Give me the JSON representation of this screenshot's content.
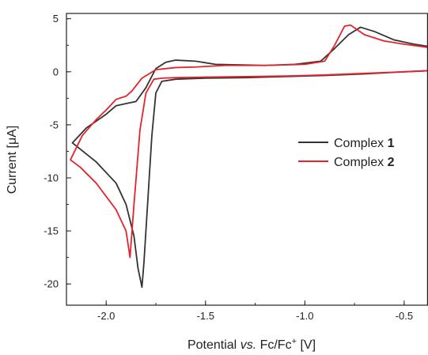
{
  "chart_data": {
    "type": "line",
    "title": "",
    "xlabel_parts": {
      "a": "Potential ",
      "b": "vs.",
      "c": " Fc/Fc",
      "d": "+",
      "e": " [V]"
    },
    "ylabel": "Current [μA]",
    "xlim": [
      -2.2,
      -0.38
    ],
    "ylim": [
      -22,
      5.5
    ],
    "x_ticks": [
      -2.0,
      -1.5,
      -1.0,
      -0.5
    ],
    "x_tick_labels": [
      "-2.0",
      "-1.5",
      "-1.0",
      "-0.5"
    ],
    "y_ticks": [
      5,
      0,
      -5,
      -10,
      -15,
      -20
    ],
    "y_tick_labels": [
      "5",
      "0",
      "-5",
      "-10",
      "-15",
      "-20"
    ],
    "legend": {
      "position": "center-right",
      "items": [
        {
          "prefix": "Complex ",
          "bold": "1",
          "color": "#333333"
        },
        {
          "prefix": "Complex ",
          "bold": "2",
          "color": "#e3242b"
        }
      ]
    },
    "series": [
      {
        "color": "#333333",
        "points": [
          [
            -0.38,
            0.1
          ],
          [
            -0.5,
            0.0
          ],
          [
            -0.7,
            -0.2
          ],
          [
            -0.9,
            -0.35
          ],
          [
            -1.1,
            -0.45
          ],
          [
            -1.3,
            -0.55
          ],
          [
            -1.5,
            -0.6
          ],
          [
            -1.65,
            -0.7
          ],
          [
            -1.72,
            -0.9
          ],
          [
            -1.75,
            -2.0
          ],
          [
            -1.77,
            -6.0
          ],
          [
            -1.79,
            -12.0
          ],
          [
            -1.81,
            -18.0
          ],
          [
            -1.82,
            -20.3
          ],
          [
            -1.84,
            -18.5
          ],
          [
            -1.86,
            -15.5
          ],
          [
            -1.9,
            -12.5
          ],
          [
            -1.95,
            -10.5
          ],
          [
            -2.05,
            -8.5
          ],
          [
            -2.17,
            -6.7
          ],
          [
            -2.1,
            -5.3
          ],
          [
            -2.0,
            -4.0
          ],
          [
            -1.95,
            -3.2
          ],
          [
            -1.9,
            -3.0
          ],
          [
            -1.85,
            -2.8
          ],
          [
            -1.8,
            -1.5
          ],
          [
            -1.75,
            0.3
          ],
          [
            -1.7,
            0.9
          ],
          [
            -1.65,
            1.1
          ],
          [
            -1.55,
            1.0
          ],
          [
            -1.45,
            0.7
          ],
          [
            -1.2,
            0.6
          ],
          [
            -1.05,
            0.7
          ],
          [
            -0.92,
            1.0
          ],
          [
            -0.85,
            2.2
          ],
          [
            -0.78,
            3.5
          ],
          [
            -0.72,
            4.2
          ],
          [
            -0.65,
            3.8
          ],
          [
            -0.55,
            3.0
          ],
          [
            -0.45,
            2.6
          ],
          [
            -0.38,
            2.4
          ]
        ]
      },
      {
        "color": "#e3242b",
        "points": [
          [
            -0.38,
            0.1
          ],
          [
            -0.5,
            0.0
          ],
          [
            -0.7,
            -0.15
          ],
          [
            -0.9,
            -0.3
          ],
          [
            -1.1,
            -0.4
          ],
          [
            -1.3,
            -0.45
          ],
          [
            -1.5,
            -0.5
          ],
          [
            -1.65,
            -0.55
          ],
          [
            -1.72,
            -0.6
          ],
          [
            -1.76,
            -0.7
          ],
          [
            -1.8,
            -2.0
          ],
          [
            -1.83,
            -5.5
          ],
          [
            -1.86,
            -12.5
          ],
          [
            -1.88,
            -17.5
          ],
          [
            -1.9,
            -15.0
          ],
          [
            -1.95,
            -13.0
          ],
          [
            -2.05,
            -10.5
          ],
          [
            -2.13,
            -9.0
          ],
          [
            -2.18,
            -8.3
          ],
          [
            -2.12,
            -6.0
          ],
          [
            -2.05,
            -4.5
          ],
          [
            -2.0,
            -3.6
          ],
          [
            -1.95,
            -2.6
          ],
          [
            -1.9,
            -2.3
          ],
          [
            -1.87,
            -1.8
          ],
          [
            -1.82,
            -0.6
          ],
          [
            -1.75,
            0.2
          ],
          [
            -1.65,
            0.4
          ],
          [
            -1.55,
            0.45
          ],
          [
            -1.4,
            0.6
          ],
          [
            -1.2,
            0.6
          ],
          [
            -1.0,
            0.7
          ],
          [
            -0.9,
            1.0
          ],
          [
            -0.85,
            2.5
          ],
          [
            -0.8,
            4.3
          ],
          [
            -0.77,
            4.4
          ],
          [
            -0.7,
            3.5
          ],
          [
            -0.6,
            2.9
          ],
          [
            -0.5,
            2.6
          ],
          [
            -0.38,
            2.3
          ]
        ]
      }
    ]
  }
}
